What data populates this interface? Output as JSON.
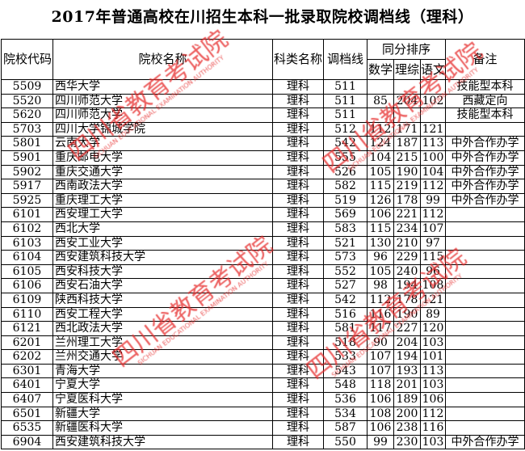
{
  "title": "2017年普通高校在川招生本科一批录取院校调档线（理科）",
  "headers": {
    "code": "院校代码",
    "name": "院校名称",
    "category": "科类名称",
    "cutoff": "调档线",
    "rank_group": "同分排序",
    "math": "数学",
    "science": "理综",
    "chinese": "语文",
    "note": "备注"
  },
  "rows": [
    {
      "code": "5509",
      "name": "西华大学",
      "category": "理科",
      "cutoff": "511",
      "math": "",
      "science": "",
      "chinese": "",
      "note": "技能型本科"
    },
    {
      "code": "5520",
      "name": "四川师范大学",
      "category": "理科",
      "cutoff": "511",
      "math": "85",
      "science": "204",
      "chinese": "102",
      "note": "西藏定向"
    },
    {
      "code": "5620",
      "name": "四川师范大学",
      "category": "理科",
      "cutoff": "511",
      "math": "",
      "science": "",
      "chinese": "",
      "note": "技能型本科"
    },
    {
      "code": "5703",
      "name": "四川大学锦城学院",
      "category": "理科",
      "cutoff": "512",
      "math": "112",
      "science": "171",
      "chinese": "121",
      "note": ""
    },
    {
      "code": "5801",
      "name": "云南大学",
      "category": "理科",
      "cutoff": "542",
      "math": "124",
      "science": "187",
      "chinese": "113",
      "note": "中外合作办学"
    },
    {
      "code": "5901",
      "name": "重庆邮电大学",
      "category": "理科",
      "cutoff": "555",
      "math": "104",
      "science": "215",
      "chinese": "100",
      "note": "中外合作办学"
    },
    {
      "code": "5902",
      "name": "重庆交通大学",
      "category": "理科",
      "cutoff": "526",
      "math": "105",
      "science": "190",
      "chinese": "104",
      "note": "中外合作办学"
    },
    {
      "code": "5917",
      "name": "西南政法大学",
      "category": "理科",
      "cutoff": "582",
      "math": "115",
      "science": "219",
      "chinese": "112",
      "note": "中外合作办学"
    },
    {
      "code": "5925",
      "name": "重庆理工大学",
      "category": "理科",
      "cutoff": "519",
      "math": "126",
      "science": "178",
      "chinese": "99",
      "note": "中外合作办学"
    },
    {
      "code": "6101",
      "name": "西安理工大学",
      "category": "理科",
      "cutoff": "569",
      "math": "106",
      "science": "221",
      "chinese": "112",
      "note": ""
    },
    {
      "code": "6102",
      "name": "西北大学",
      "category": "理科",
      "cutoff": "583",
      "math": "115",
      "science": "234",
      "chinese": "107",
      "note": ""
    },
    {
      "code": "6103",
      "name": "西安工业大学",
      "category": "理科",
      "cutoff": "521",
      "math": "130",
      "science": "210",
      "chinese": "97",
      "note": ""
    },
    {
      "code": "6104",
      "name": "西安建筑科技大学",
      "category": "理科",
      "cutoff": "573",
      "math": "96",
      "science": "229",
      "chinese": "115",
      "note": ""
    },
    {
      "code": "6105",
      "name": "西安科技大学",
      "category": "理科",
      "cutoff": "552",
      "math": "105",
      "science": "240",
      "chinese": "96",
      "note": ""
    },
    {
      "code": "6106",
      "name": "西安石油大学",
      "category": "理科",
      "cutoff": "527",
      "math": "98",
      "science": "194",
      "chinese": "108",
      "note": ""
    },
    {
      "code": "6109",
      "name": "陕西科技大学",
      "category": "理科",
      "cutoff": "542",
      "math": "112",
      "science": "178",
      "chinese": "121",
      "note": ""
    },
    {
      "code": "6110",
      "name": "西安工程大学",
      "category": "理科",
      "cutoff": "516",
      "math": "116",
      "science": "190",
      "chinese": "89",
      "note": ""
    },
    {
      "code": "6121",
      "name": "西北政法大学",
      "category": "理科",
      "cutoff": "581",
      "math": "117",
      "science": "227",
      "chinese": "120",
      "note": ""
    },
    {
      "code": "6201",
      "name": "兰州理工大学",
      "category": "理科",
      "cutoff": "518",
      "math": "90",
      "science": "204",
      "chinese": "103",
      "note": ""
    },
    {
      "code": "6202",
      "name": "兰州交通大学",
      "category": "理科",
      "cutoff": "533",
      "math": "107",
      "science": "194",
      "chinese": "101",
      "note": ""
    },
    {
      "code": "6301",
      "name": "青海大学",
      "category": "理科",
      "cutoff": "543",
      "math": "107",
      "science": "193",
      "chinese": "113",
      "note": ""
    },
    {
      "code": "6401",
      "name": "宁夏大学",
      "category": "理科",
      "cutoff": "548",
      "math": "118",
      "science": "201",
      "chinese": "103",
      "note": ""
    },
    {
      "code": "6407",
      "name": "宁夏医科大学",
      "category": "理科",
      "cutoff": "536",
      "math": "106",
      "science": "189",
      "chinese": "106",
      "note": ""
    },
    {
      "code": "6501",
      "name": "新疆大学",
      "category": "理科",
      "cutoff": "534",
      "math": "108",
      "science": "200",
      "chinese": "112",
      "note": ""
    },
    {
      "code": "6535",
      "name": "新疆医科大学",
      "category": "理科",
      "cutoff": "587",
      "math": "106",
      "science": "238",
      "chinese": "116",
      "note": ""
    },
    {
      "code": "6904",
      "name": "西安建筑科技大学",
      "category": "理科",
      "cutoff": "550",
      "math": "99",
      "science": "230",
      "chinese": "103",
      "note": "中外合作办学"
    }
  ],
  "watermark": {
    "text": "四川省教育考试院",
    "subtext": "SICHUAN EDUCATIONAL EXAMINATION AUTHORITY",
    "color": "#e62828"
  }
}
